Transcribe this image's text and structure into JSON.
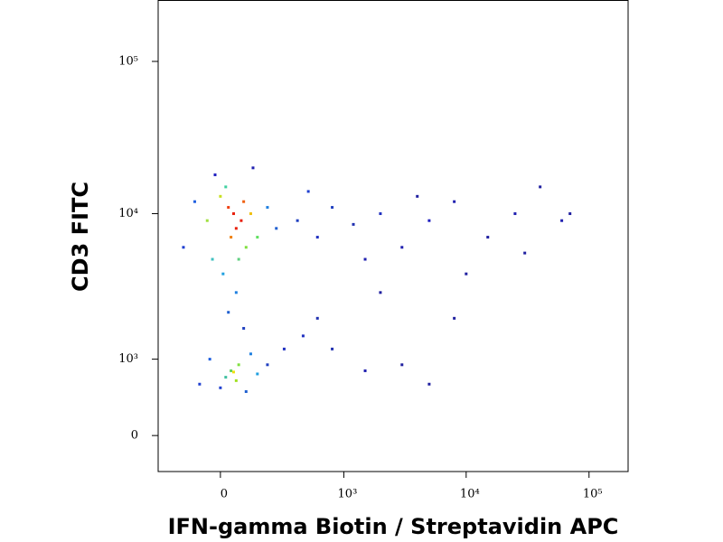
{
  "chart_data": {
    "type": "scatter",
    "x_label": "IFN-gamma Biotin / Streptavidin APC",
    "y_label": "CD3 FITC",
    "xlim": [
      -290,
      208000
    ],
    "ylim": [
      -400,
      253000
    ],
    "xticks": [
      0,
      {
        "value": 1000,
        "label": "10³"
      },
      {
        "value": 10000,
        "label": "10⁴"
      },
      {
        "value": 100000,
        "label": "10⁵"
      }
    ],
    "yticks": [
      0,
      {
        "value": 1000,
        "label": "10³"
      },
      {
        "value": 10000,
        "label": "10⁴"
      },
      {
        "value": 100000,
        "label": "10⁵"
      }
    ],
    "x": [
      50,
      80,
      30,
      60,
      90,
      40,
      0,
      120,
      -50,
      150,
      20,
      100,
      -30,
      70,
      -100,
      200,
      250,
      -150,
      10,
      60,
      30,
      90,
      -20,
      130,
      40,
      70,
      20,
      60,
      50,
      -40,
      120,
      150,
      0,
      100,
      200,
      300,
      -80,
      400,
      600,
      800,
      1200,
      2000,
      3000,
      5000,
      8000,
      15000,
      25000,
      40000,
      60000,
      70000,
      500,
      1500,
      4000,
      10000,
      30000,
      450,
      800,
      1500,
      3000,
      5000,
      600,
      2000,
      8000
    ],
    "y": [
      10000,
      9000,
      11000,
      8000,
      12000,
      7000,
      13000,
      10000,
      9000,
      7000,
      15000,
      6000,
      5000,
      5000,
      12000,
      11000,
      8000,
      6000,
      4000,
      3000,
      2200,
      1700,
      18000,
      20000,
      800,
      900,
      700,
      650,
      780,
      1000,
      1100,
      750,
      550,
      500,
      900,
      1200,
      600,
      9000,
      7000,
      11000,
      8500,
      10000,
      6000,
      9000,
      12000,
      7000,
      10000,
      15000,
      9000,
      10000,
      14000,
      5000,
      13000,
      4000,
      5500,
      1500,
      1200,
      800,
      900,
      600,
      2000,
      3000,
      2000
    ],
    "colors": [
      "#e8200c",
      "#e8200c",
      "#f04010",
      "#e8200c",
      "#f06010",
      "#f08010",
      "#c8e020",
      "#f0c010",
      "#a0e040",
      "#60e060",
      "#40d0a0",
      "#80e040",
      "#40c0c0",
      "#60d080",
      "#2060e0",
      "#2080e0",
      "#2060d0",
      "#2040d0",
      "#20a0e0",
      "#2080e0",
      "#2060d0",
      "#2040c0",
      "#2020c0",
      "#2020b0",
      "#60d060",
      "#80e040",
      "#40c0a0",
      "#a0e020",
      "#f0e010",
      "#2060e0",
      "#2080e0",
      "#20a0e0",
      "#2040d0",
      "#2060d0",
      "#2040c0",
      "#2030c0",
      "#2040d0",
      "#2040c0",
      "#2030c0",
      "#2040c0",
      "#2030b0",
      "#2030c0",
      "#2020b0",
      "#2020c0",
      "#2020b0",
      "#2020a0",
      "#2020b0",
      "#2020a0",
      "#2020b0",
      "#2020a0",
      "#2040d0",
      "#2020b0",
      "#2020a0",
      "#2020a0",
      "#2020a0",
      "#2030c0",
      "#2030b0",
      "#2020b0",
      "#2020a0",
      "#2020a0",
      "#2030b0",
      "#2020a0",
      "#2020a0"
    ]
  }
}
